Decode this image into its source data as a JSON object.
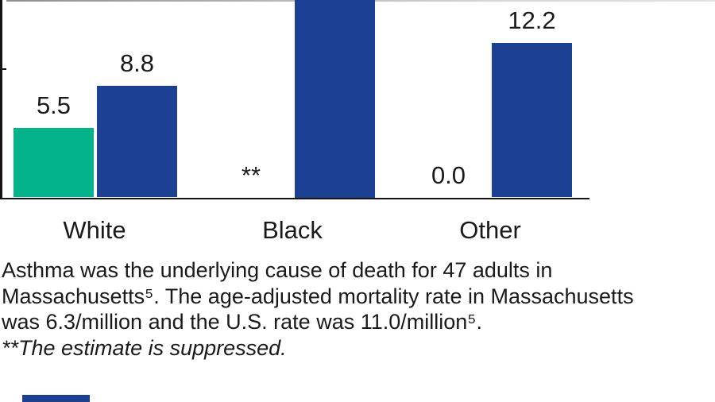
{
  "chart_data": {
    "type": "bar",
    "categories": [
      "White",
      "Black",
      "Other"
    ],
    "series": [
      {
        "name": "series-green",
        "color": "#03b389",
        "values": [
          5.5,
          null,
          0.0
        ],
        "labels": [
          "5.5",
          "**",
          "0.0"
        ],
        "suppressed": [
          false,
          true,
          false
        ],
        "clipped": [
          false,
          false,
          false
        ]
      },
      {
        "name": "series-blue",
        "color": "#1b4094",
        "values": [
          8.8,
          null,
          12.2
        ],
        "labels": [
          "8.8",
          "",
          "12.2"
        ],
        "suppressed": [
          false,
          false,
          false
        ],
        "clipped": [
          false,
          true,
          false
        ]
      }
    ],
    "title": "",
    "xlabel": "",
    "ylabel": "",
    "y_tick_estimate": 10,
    "ylim_visible": [
      0,
      15.6
    ],
    "grid": false,
    "legend_visible": false,
    "note": "second series bar for Black extends beyond top crop; its value label is not visible"
  },
  "notes": {
    "line1": "Asthma was the underlying cause of death for 47 adults in",
    "line2": "Massachusetts⁵. The age-adjusted mortality rate in Massachusetts",
    "line3": "was 6.3/million and the U.S. rate was 11.0/million⁵.",
    "line4": "**The estimate is suppressed.",
    "suppressed_marker": "**",
    "adult_deaths": "47",
    "ma_rate": "6.3/million",
    "us_rate": "11.0/million"
  },
  "colors": {
    "bar_green": "#03b389",
    "bar_blue": "#1b4094",
    "axis": "#151515",
    "text": "#1a1a1a"
  }
}
